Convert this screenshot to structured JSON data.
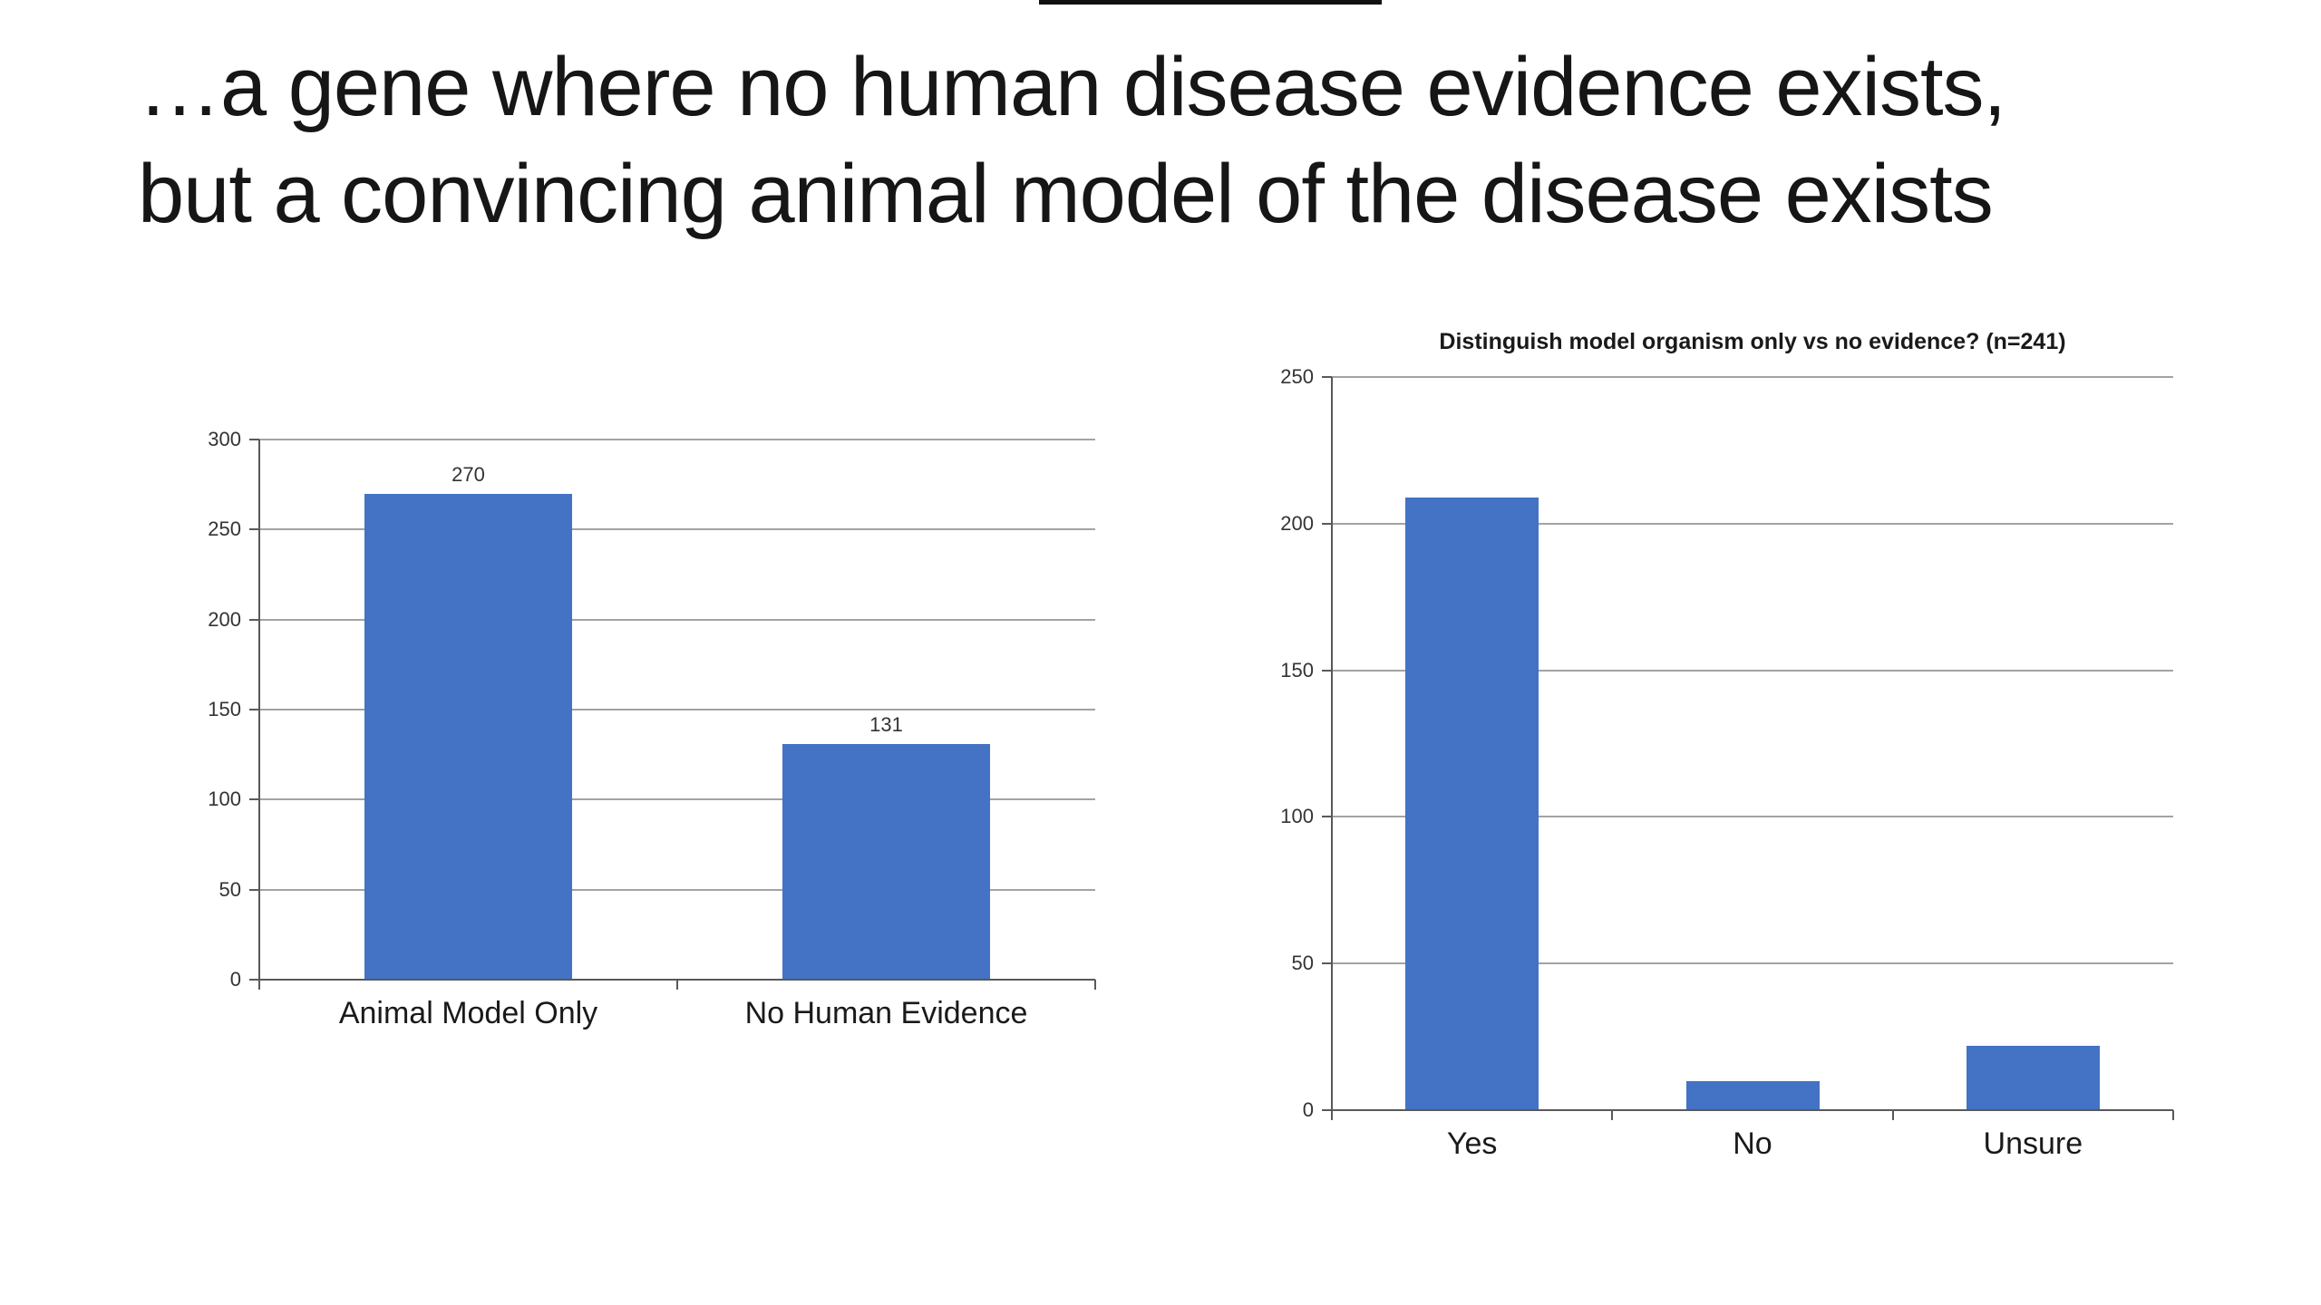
{
  "slide": {
    "title_line1": "…a gene where no human disease evidence exists,",
    "title_line2": "but a convincing animal model of the disease exists",
    "background_color": "#ffffff",
    "title_color": "#161616"
  },
  "chart_data": [
    {
      "type": "bar",
      "title": "",
      "categories": [
        "Animal Model Only",
        "No Human Evidence"
      ],
      "values": [
        270,
        131
      ],
      "show_value_labels": true,
      "value_labels": [
        "270",
        "131"
      ],
      "xlabel": "",
      "ylabel": "",
      "ylim": [
        0,
        300
      ],
      "yticks": [
        0,
        50,
        100,
        150,
        200,
        250,
        300
      ],
      "bar_color": "#4472C4",
      "grid": true,
      "legend": "none"
    },
    {
      "type": "bar",
      "title": "Distinguish model organism only vs no evidence? (n=241)",
      "categories": [
        "Yes",
        "No",
        "Unsure"
      ],
      "values": [
        209,
        10,
        22
      ],
      "show_value_labels": false,
      "value_labels": [],
      "xlabel": "",
      "ylabel": "",
      "ylim": [
        0,
        250
      ],
      "yticks": [
        0,
        50,
        100,
        150,
        200,
        250
      ],
      "bar_color": "#4472C4",
      "grid": true,
      "legend": "none"
    }
  ]
}
